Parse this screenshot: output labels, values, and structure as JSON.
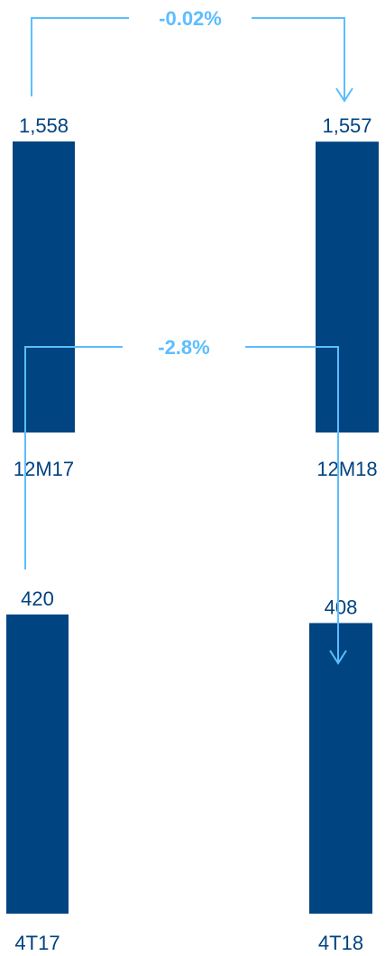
{
  "colors": {
    "bar": "#004481",
    "text": "#00427f",
    "arrow": "#5bbeff"
  },
  "chart_data": [
    {
      "type": "bar",
      "categories": [
        "12M17",
        "12M18"
      ],
      "values": [
        1558,
        1557
      ],
      "value_labels": [
        "1,558",
        "1,557"
      ],
      "change_label": "-0.02%",
      "ylim": [
        0,
        1558
      ]
    },
    {
      "type": "bar",
      "categories": [
        "4T17",
        "4T18"
      ],
      "values": [
        420,
        408
      ],
      "value_labels": [
        "420",
        "408"
      ],
      "change_label": "-2.8%",
      "ylim": [
        0,
        420
      ]
    }
  ]
}
